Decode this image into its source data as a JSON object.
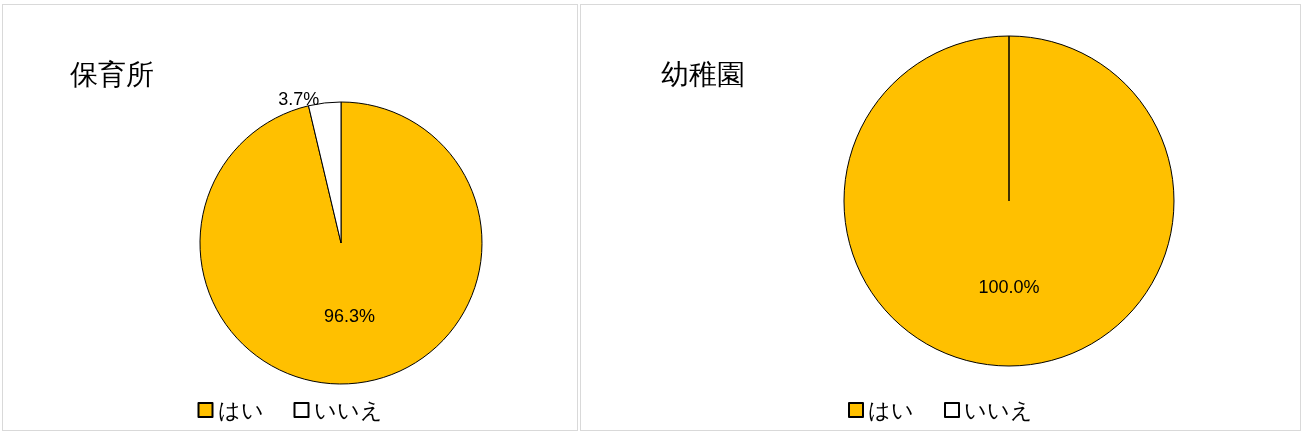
{
  "chart_data": [
    {
      "type": "pie",
      "title": "保育所",
      "categories": [
        "はい",
        "いいえ"
      ],
      "values": [
        96.3,
        3.7
      ],
      "colors": [
        "#ffc000",
        "#ffffff"
      ],
      "value_labels": [
        "96.3%",
        "3.7%"
      ],
      "legend": "bottom"
    },
    {
      "type": "pie",
      "title": "幼稚園",
      "categories": [
        "はい",
        "いいえ"
      ],
      "values": [
        100,
        0
      ],
      "colors": [
        "#ffc000",
        "#ffffff"
      ],
      "value_labels": [
        "100.0%",
        null
      ],
      "legend": "bottom"
    }
  ]
}
